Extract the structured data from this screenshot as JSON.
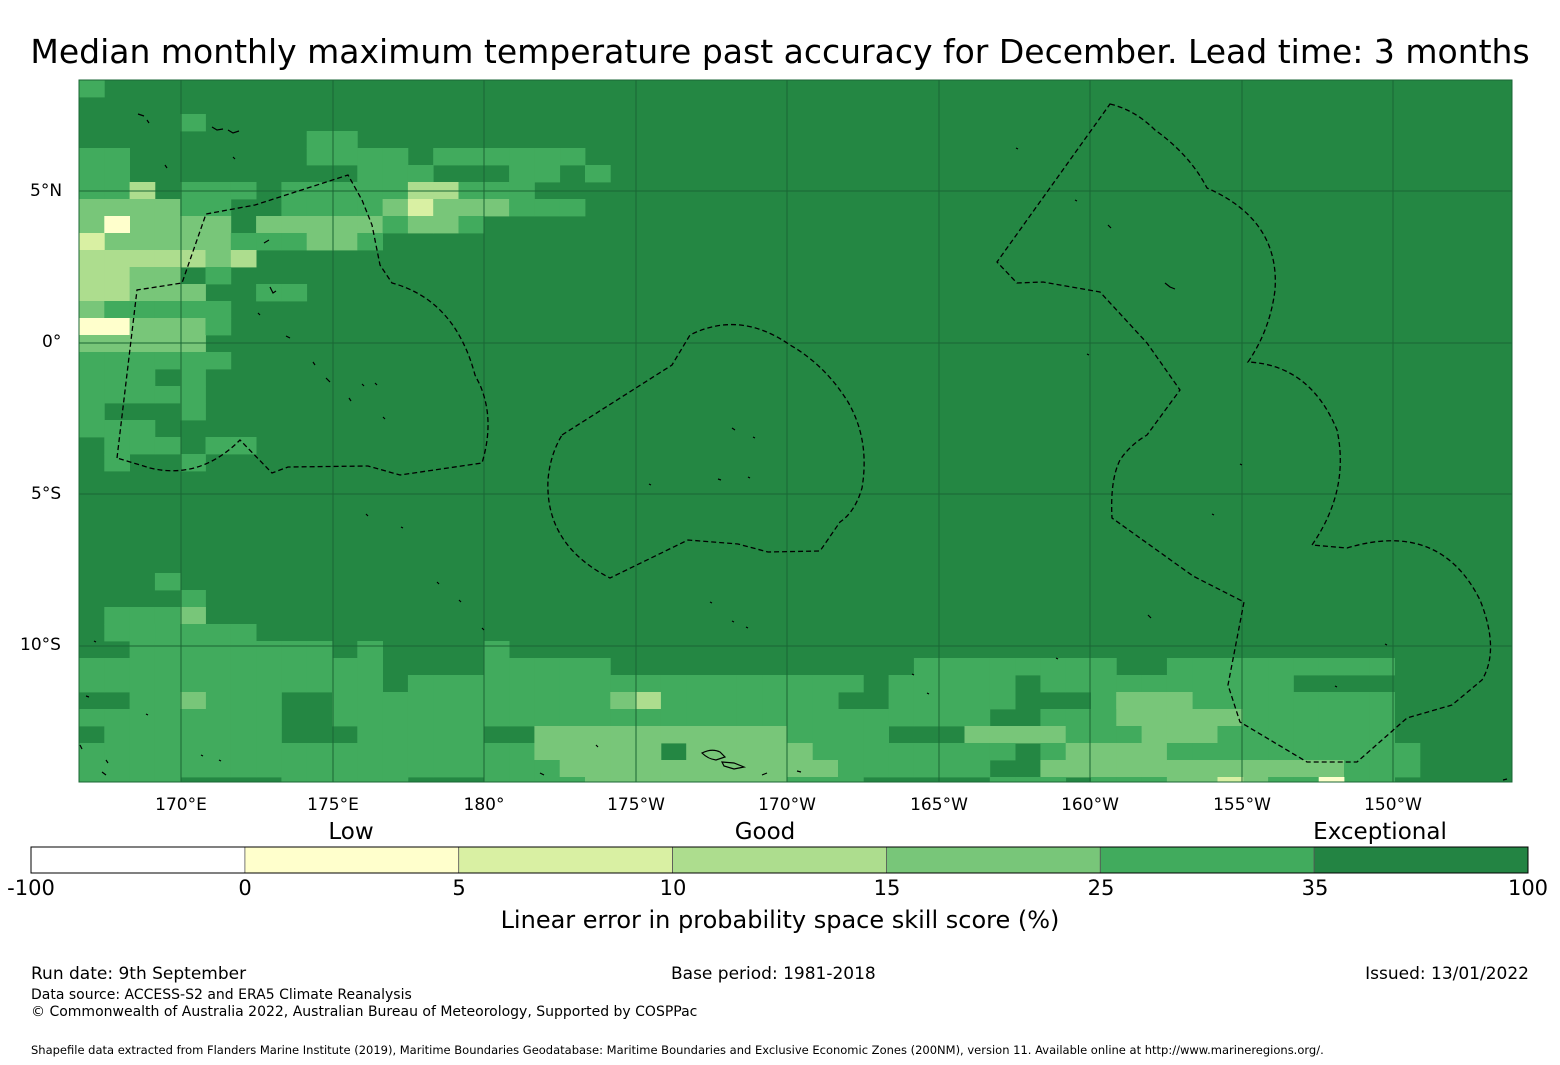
{
  "title": "Median monthly maximum temperature past accuracy for December. Lead time: 3 months",
  "map": {
    "lat_labels": [
      "5°N",
      "0°",
      "5°S",
      "10°S"
    ],
    "lon_labels": [
      "170°E",
      "175°E",
      "180°",
      "175°W",
      "170°W",
      "165°W",
      "160°W",
      "155°W",
      "150°W"
    ],
    "base_color": "#248743",
    "gridline_color": "#1a6634"
  },
  "legend": {
    "categories": [
      "Low",
      "Good",
      "Exceptional"
    ],
    "ticks": [
      "-100",
      "0",
      "5",
      "10",
      "15",
      "25",
      "35",
      "100"
    ],
    "colors": [
      "#ffffff",
      "#ffffcc",
      "#d9f0a3",
      "#addd8e",
      "#78c679",
      "#41ab5d",
      "#238443"
    ],
    "title": "Linear error in probability space skill score (%)"
  },
  "footer": {
    "run_date": "Run date: 9th September",
    "base_period": "Base period: 1981-2018",
    "issued": "Issued: 13/01/2022",
    "data_source": "Data source: ACCESS-S2 and ERA5 Climate Reanalysis",
    "copyright": "© Commonwealth of Australia 2022, Australian Bureau of Meteorology, Supported by COSPPac",
    "shapefile": "Shapefile data extracted from Flanders Marine Institute (2019), Maritime Boundaries Geodatabase: Maritime Boundaries and Exclusive Economic Zones (200NM), version 11. Available online at http://www.marineregions.org/."
  }
}
